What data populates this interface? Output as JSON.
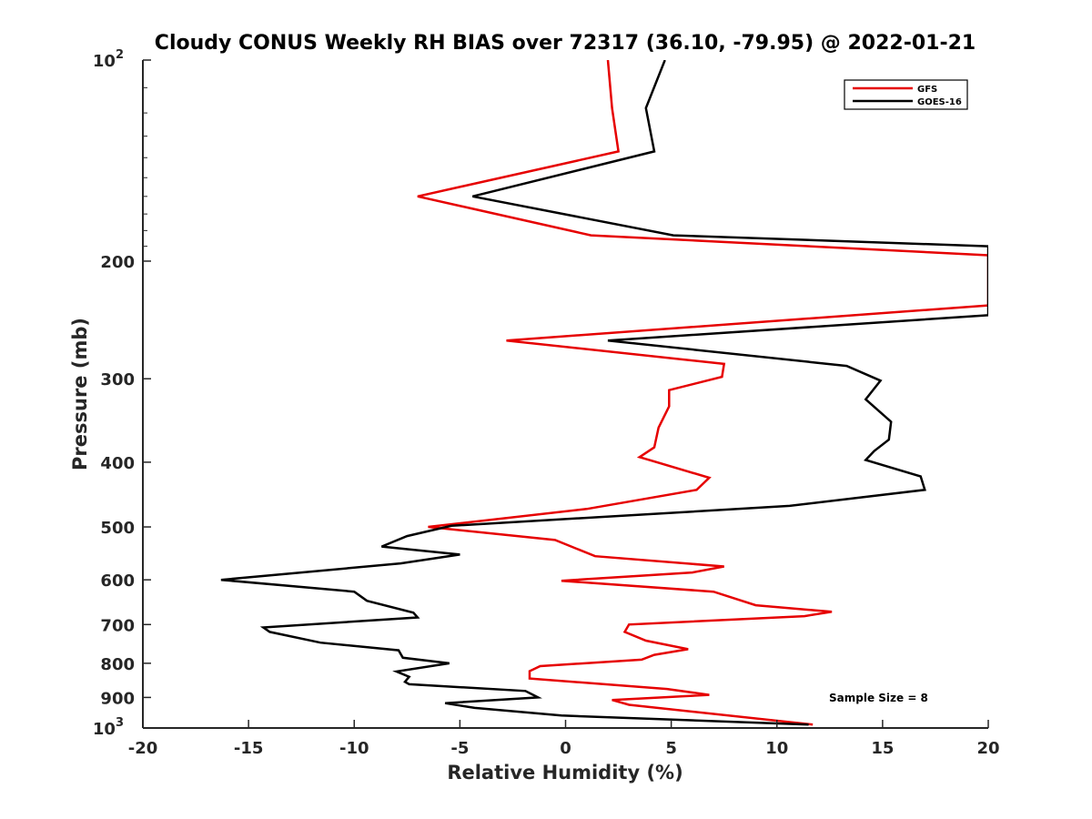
{
  "chart_data": {
    "type": "line",
    "title": "Cloudy CONUS Weekly RH BIAS over 72317 (36.10, -79.95) @ 2022-01-21",
    "xlabel": "Relative Humidity (%)",
    "ylabel": "Pressure (mb)",
    "xlim": [
      -20,
      20
    ],
    "ylim": [
      100,
      1000
    ],
    "yscale": "log",
    "y_reversed": true,
    "grid": false,
    "legend_position": "top-right",
    "x_ticks": [
      "-20",
      "-15",
      "-10",
      "-5",
      "0",
      "5",
      "10",
      "15",
      "20"
    ],
    "y_ticks": [
      {
        "value": 100,
        "base": "10",
        "exp": "2"
      },
      {
        "value": 200,
        "label": "200"
      },
      {
        "value": 300,
        "label": "300"
      },
      {
        "value": 400,
        "label": "400"
      },
      {
        "value": 500,
        "label": "500"
      },
      {
        "value": 600,
        "label": "600"
      },
      {
        "value": 700,
        "label": "700"
      },
      {
        "value": 800,
        "label": "800"
      },
      {
        "value": 900,
        "label": "900"
      },
      {
        "value": 1000,
        "base": "10",
        "exp": "3"
      }
    ],
    "annotation": "Sample Size = 8",
    "series": [
      {
        "name": "GFS",
        "color": "#e60000",
        "points": [
          [
            2.0,
            100
          ],
          [
            2.2,
            118
          ],
          [
            2.5,
            137
          ],
          [
            -7.0,
            160
          ],
          [
            1.2,
            183
          ],
          [
            20,
            196
          ],
          [
            20,
            233
          ],
          [
            -2.8,
            263
          ],
          [
            7.5,
            285
          ],
          [
            7.4,
            298
          ],
          [
            4.9,
            312
          ],
          [
            4.9,
            330
          ],
          [
            4.4,
            355
          ],
          [
            4.2,
            380
          ],
          [
            3.5,
            393
          ],
          [
            6.8,
            422
          ],
          [
            6.2,
            440
          ],
          [
            1.0,
            470
          ],
          [
            -6.5,
            500
          ],
          [
            -0.5,
            523
          ],
          [
            1.4,
            553
          ],
          [
            7.5,
            573
          ],
          [
            6.0,
            585
          ],
          [
            -0.2,
            602
          ],
          [
            7.0,
            625
          ],
          [
            9.0,
            655
          ],
          [
            12.6,
            670
          ],
          [
            11.3,
            680
          ],
          [
            3.0,
            700
          ],
          [
            2.8,
            718
          ],
          [
            3.8,
            740
          ],
          [
            5.8,
            762
          ],
          [
            4.2,
            777
          ],
          [
            3.6,
            790
          ],
          [
            -1.2,
            808
          ],
          [
            -1.7,
            822
          ],
          [
            -1.7,
            843
          ],
          [
            4.8,
            874
          ],
          [
            6.8,
            892
          ],
          [
            2.2,
            908
          ],
          [
            3.0,
            923
          ],
          [
            11.7,
            988
          ]
        ]
      },
      {
        "name": "GOES-16",
        "color": "#000000",
        "points": [
          [
            4.7,
            100
          ],
          [
            3.8,
            118
          ],
          [
            4.2,
            137
          ],
          [
            -4.4,
            160
          ],
          [
            5.1,
            183
          ],
          [
            20,
            190
          ],
          [
            20,
            241
          ],
          [
            2.0,
            263
          ],
          [
            13.3,
            287
          ],
          [
            14.9,
            302
          ],
          [
            14.2,
            322
          ],
          [
            15.4,
            348
          ],
          [
            15.3,
            370
          ],
          [
            14.6,
            385
          ],
          [
            14.2,
            397
          ],
          [
            16.8,
            420
          ],
          [
            17.0,
            440
          ],
          [
            10.6,
            465
          ],
          [
            -5.4,
            498
          ],
          [
            -7.5,
            516
          ],
          [
            -8.7,
            535
          ],
          [
            -5.0,
            550
          ],
          [
            -7.8,
            567
          ],
          [
            -16.3,
            600
          ],
          [
            -10.0,
            625
          ],
          [
            -9.4,
            645
          ],
          [
            -7.2,
            672
          ],
          [
            -7.0,
            683
          ],
          [
            -14.3,
            707
          ],
          [
            -14.0,
            718
          ],
          [
            -11.6,
            745
          ],
          [
            -7.9,
            765
          ],
          [
            -7.7,
            785
          ],
          [
            -5.5,
            800
          ],
          [
            -8.0,
            823
          ],
          [
            -7.4,
            838
          ],
          [
            -7.6,
            853
          ],
          [
            -7.4,
            860
          ],
          [
            -1.9,
            880
          ],
          [
            -1.3,
            900
          ],
          [
            -5.7,
            918
          ],
          [
            -4.3,
            933
          ],
          [
            -0.2,
            958
          ],
          [
            11.5,
            988
          ]
        ]
      }
    ]
  }
}
